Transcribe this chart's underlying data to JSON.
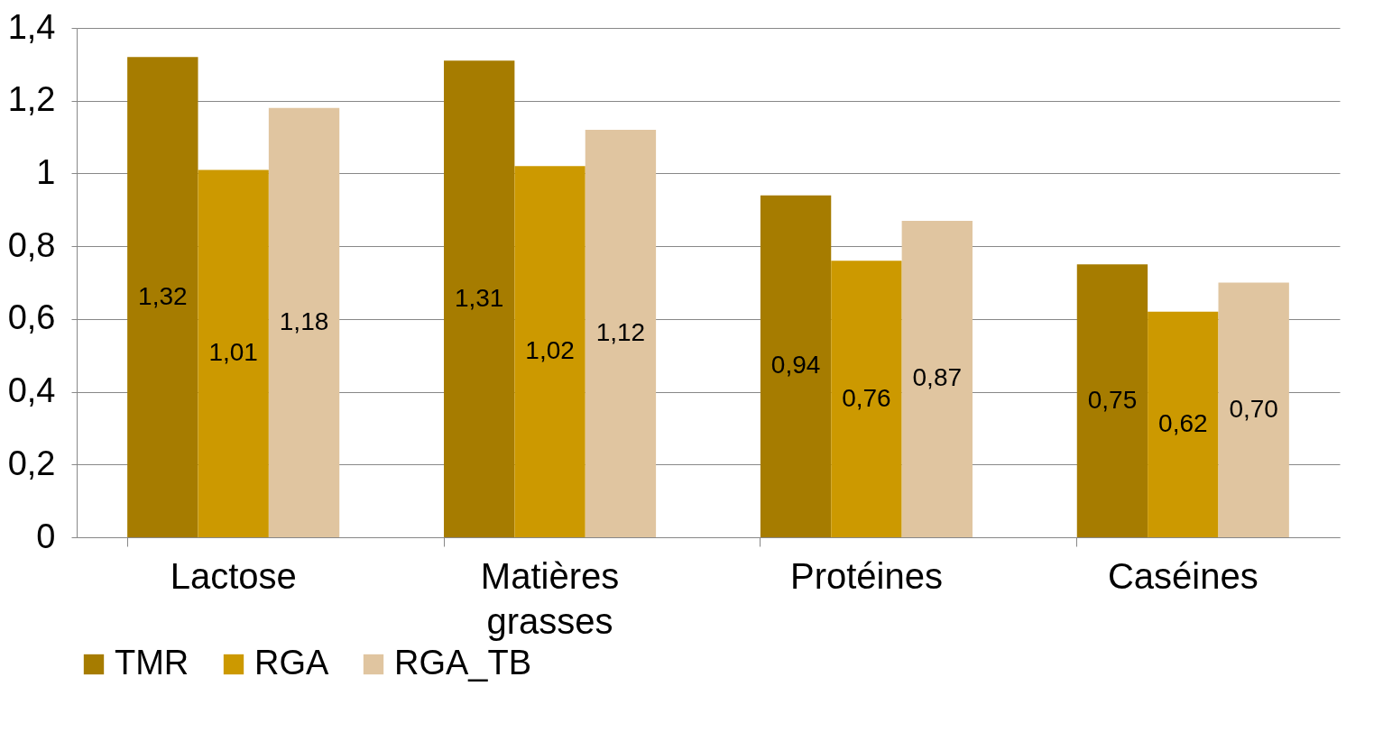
{
  "chart_data": {
    "type": "bar",
    "categories": [
      "Lactose",
      "Matières grasses",
      "Protéines",
      "Caséines"
    ],
    "series": [
      {
        "name": "TMR",
        "color": "#a67c00",
        "values": [
          1.32,
          1.31,
          0.94,
          0.75
        ],
        "value_labels": [
          "1,32",
          "1,31",
          "0,94",
          "0,75"
        ]
      },
      {
        "name": "RGA",
        "color": "#cc9900",
        "values": [
          1.01,
          1.02,
          0.76,
          0.62
        ],
        "value_labels": [
          "1,01",
          "1,02",
          "0,76",
          "0,62"
        ]
      },
      {
        "name": "RGA_TB",
        "color": "#e0c5a0",
        "values": [
          1.18,
          1.12,
          0.87,
          0.7
        ],
        "value_labels": [
          "1,18",
          "1,12",
          "0,87",
          "0,70"
        ]
      }
    ],
    "ylim": [
      0,
      1.4
    ],
    "yticks": [
      0,
      {
        "value": 0.2,
        "label": "0,2"
      },
      {
        "value": 0.4,
        "label": "0,4"
      },
      {
        "value": 0.6,
        "label": "0,6"
      },
      {
        "value": 0.8,
        "label": "0,8"
      },
      1,
      {
        "value": 1.2,
        "label": "1,2"
      },
      {
        "value": 1.4,
        "label": "1,4"
      }
    ],
    "grid": "y",
    "legend": "bottom"
  }
}
